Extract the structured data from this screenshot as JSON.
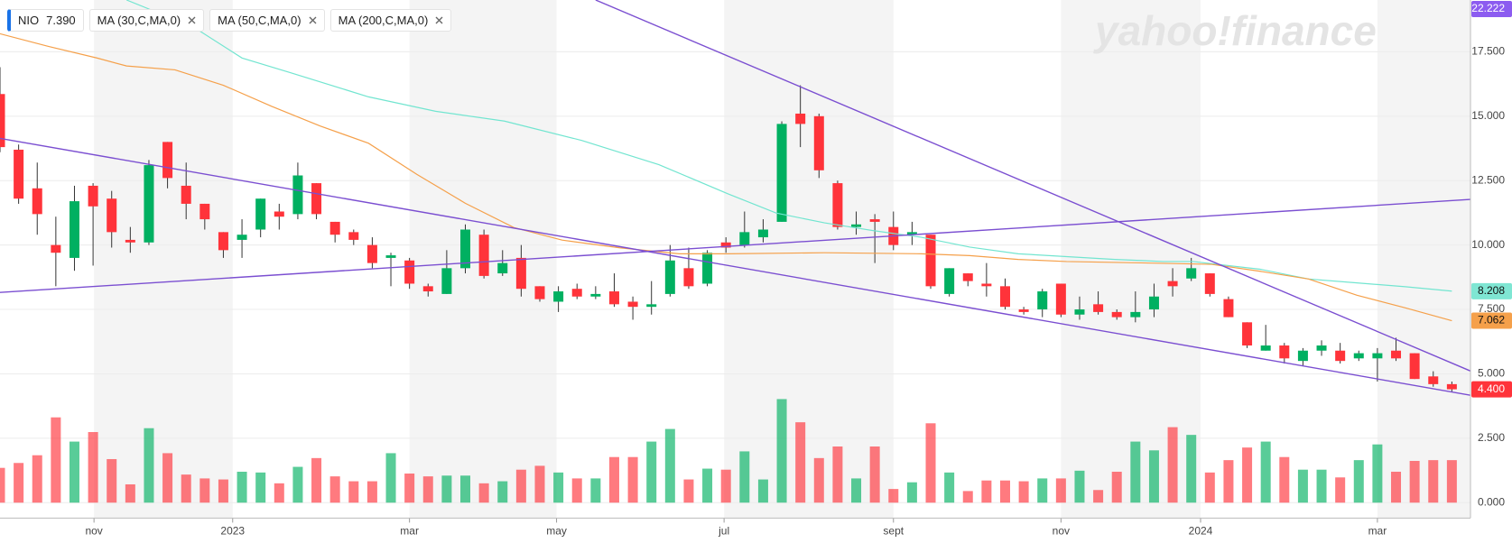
{
  "chart_data": {
    "type": "candlestick",
    "watermark": "yahoo!finance",
    "series": [
      {
        "name": "NIO",
        "legend_value": {
          "value": 7.39,
          "label": "7.390"
        },
        "up_color": "#00b061",
        "down_color": "#ff333a",
        "open": [
          15.86,
          13.7,
          12.2,
          10.0,
          9.5,
          12.3,
          11.8,
          10.2,
          10.1,
          14.0,
          12.3,
          11.6,
          10.5,
          10.2,
          10.6,
          11.3,
          11.2,
          12.4,
          10.9,
          10.5,
          10.0,
          9.5,
          9.4,
          8.4,
          8.1,
          9.1,
          10.4,
          8.9,
          9.5,
          8.4,
          7.8,
          8.3,
          8.0,
          8.2,
          7.8,
          7.6,
          8.1,
          9.1,
          8.5,
          10.1,
          10.0,
          10.3,
          10.9,
          15.1,
          15.0,
          12.4,
          10.7,
          11.0,
          10.7,
          10.4,
          10.4,
          8.1,
          8.9,
          8.5,
          8.4,
          7.5,
          7.5,
          8.5,
          7.3,
          7.7,
          7.4,
          7.2,
          7.5,
          8.6,
          8.7,
          8.9,
          7.9,
          7.0,
          5.9,
          6.1,
          5.5,
          5.9,
          5.9,
          5.6,
          5.6,
          5.9,
          5.8,
          4.9,
          4.6
        ],
        "high": [
          16.9,
          13.9,
          13.2,
          11.1,
          12.3,
          12.4,
          12.1,
          10.7,
          13.3,
          14.0,
          13.2,
          11.6,
          10.5,
          11.0,
          11.8,
          11.6,
          13.2,
          12.4,
          10.9,
          10.6,
          10.3,
          9.7,
          9.5,
          8.5,
          9.8,
          10.8,
          10.6,
          9.8,
          10.0,
          8.4,
          8.4,
          8.5,
          8.4,
          8.9,
          8.0,
          8.6,
          10.0,
          9.9,
          9.8,
          10.3,
          11.3,
          11.0,
          14.8,
          16.2,
          15.1,
          12.5,
          11.3,
          11.2,
          11.3,
          10.9,
          10.4,
          9.1,
          8.9,
          9.3,
          8.7,
          7.6,
          8.3,
          8.5,
          8.0,
          8.2,
          7.5,
          8.2,
          8.5,
          9.1,
          9.5,
          8.9,
          8.0,
          7.0,
          6.9,
          6.2,
          6.0,
          6.3,
          6.2,
          5.9,
          6.0,
          6.4,
          5.8,
          5.1,
          4.7
        ],
        "low": [
          13.6,
          11.6,
          10.4,
          8.4,
          9.0,
          9.2,
          9.9,
          9.7,
          10.0,
          12.2,
          11.0,
          10.6,
          9.5,
          9.5,
          10.3,
          10.6,
          11.0,
          11.0,
          10.1,
          10.0,
          9.1,
          8.4,
          8.3,
          8.0,
          8.1,
          8.9,
          8.7,
          8.8,
          8.0,
          7.8,
          7.4,
          7.9,
          7.9,
          7.6,
          7.1,
          7.3,
          8.0,
          8.3,
          8.4,
          9.7,
          9.9,
          10.1,
          10.9,
          13.8,
          12.6,
          10.6,
          10.4,
          9.3,
          9.8,
          10.0,
          8.3,
          8.0,
          8.4,
          8.0,
          7.5,
          7.3,
          7.2,
          7.2,
          7.1,
          7.3,
          7.1,
          7.0,
          7.2,
          8.0,
          8.6,
          8.0,
          7.2,
          6.0,
          5.9,
          5.4,
          5.3,
          5.7,
          5.4,
          5.5,
          4.7,
          5.5,
          4.8,
          4.5,
          4.3
        ],
        "close": [
          13.8,
          11.8,
          11.2,
          9.7,
          11.7,
          11.5,
          10.5,
          10.1,
          13.1,
          12.6,
          11.6,
          11.0,
          9.8,
          10.4,
          11.8,
          11.1,
          12.7,
          11.2,
          10.4,
          10.2,
          9.3,
          9.6,
          8.5,
          8.2,
          9.1,
          10.6,
          8.8,
          9.3,
          8.3,
          7.9,
          8.2,
          8.0,
          8.1,
          7.7,
          7.6,
          7.7,
          9.4,
          8.4,
          9.7,
          9.9,
          10.5,
          10.6,
          14.7,
          14.7,
          12.9,
          10.7,
          10.8,
          10.9,
          10.0,
          10.5,
          8.4,
          9.1,
          8.6,
          8.4,
          7.6,
          7.4,
          8.2,
          7.3,
          7.5,
          7.4,
          7.2,
          7.4,
          8.0,
          8.4,
          9.1,
          8.1,
          7.2,
          6.1,
          6.1,
          5.6,
          5.9,
          6.1,
          5.5,
          5.8,
          5.8,
          5.6,
          4.8,
          4.6,
          4.4
        ],
        "volume": [
          1.35,
          1.54,
          1.84,
          3.31,
          2.37,
          2.74,
          1.69,
          0.71,
          2.89,
          1.92,
          1.09,
          0.94,
          0.9,
          1.2,
          1.17,
          0.75,
          1.39,
          1.73,
          1.02,
          0.83,
          0.83,
          1.92,
          1.13,
          1.02,
          1.05,
          1.05,
          0.75,
          0.83,
          1.28,
          1.43,
          1.17,
          0.94,
          0.94,
          1.77,
          1.77,
          2.37,
          2.86,
          0.9,
          1.32,
          1.28,
          1.99,
          0.9,
          4.02,
          3.12,
          1.73,
          2.18,
          0.94,
          2.18,
          0.53,
          0.79,
          3.08,
          1.17,
          0.45,
          0.86,
          0.86,
          0.83,
          0.94,
          0.94,
          1.24,
          0.49,
          1.2,
          2.37,
          2.03,
          2.93,
          2.63,
          1.17,
          1.65,
          2.14,
          2.37,
          1.77,
          1.28,
          1.28,
          0.98,
          1.65,
          2.26,
          1.2,
          1.62,
          1.65,
          1.65
        ]
      }
    ],
    "ma_series": [
      {
        "name": "MA (30,C,MA,0)",
        "color": "#72e5d0",
        "x": [
          6.8,
          10.4,
          13.0,
          15.6,
          19.8,
          23.4,
          27.1,
          31.25,
          35.4,
          39.1,
          41.7,
          44.3,
          46.9,
          49.5,
          52.1,
          54.7,
          57.3,
          59.9,
          62.5,
          64.1,
          67.7,
          70.3,
          72.9,
          75.5,
          78
        ],
        "values": [
          19.51,
          18.46,
          17.26,
          16.69,
          15.75,
          15.19,
          14.81,
          14.06,
          13.12,
          11.99,
          11.24,
          10.86,
          10.56,
          10.3,
          9.92,
          9.66,
          9.55,
          9.44,
          9.36,
          9.36,
          9.06,
          8.68,
          8.53,
          8.38,
          8.21
        ]
      },
      {
        "name": "MA (50,C,MA,0)",
        "color": "#f5a04a",
        "x": [
          0,
          2.6,
          5.2,
          6.8,
          9.4,
          12.0,
          14.6,
          17.2,
          19.8,
          22.4,
          25.0,
          27.6,
          30.2,
          33.3,
          36.5,
          39.1,
          44.3,
          49.5,
          52.1,
          54.7,
          57.3,
          62.5,
          65.1,
          67.7,
          70.3,
          72.9,
          75.5,
          78
        ],
        "values": [
          18.2,
          17.71,
          17.26,
          16.95,
          16.8,
          16.2,
          15.38,
          14.62,
          13.95,
          12.74,
          11.62,
          10.68,
          10.19,
          9.89,
          9.66,
          9.66,
          9.7,
          9.66,
          9.59,
          9.44,
          9.36,
          9.29,
          9.25,
          8.98,
          8.68,
          8.05,
          7.56,
          7.06
        ]
      },
      {
        "name": "MA (200,C,MA,0)"
      }
    ],
    "trendline_color": "#7b4fd1",
    "trendlines": [
      {
        "x": [
          0,
          79
        ],
        "y": [
          14.14,
          4.17
        ]
      },
      {
        "x": [
          0,
          79
        ],
        "y": [
          8.16,
          11.77
        ]
      },
      {
        "x": [
          32,
          79
        ],
        "y": [
          19.51,
          5.11
        ]
      }
    ],
    "price_labels": [
      {
        "value": 22.222,
        "label": "22.222",
        "color": "#8c5cf0",
        "text_color": "#ffffff"
      },
      {
        "value": 8.208,
        "label": "8.208",
        "color": "#7fe6d3",
        "text_color": "#111111"
      },
      {
        "value": 7.062,
        "label": "7.062",
        "color": "#f5a04a",
        "text_color": "#111111"
      },
      {
        "value": 4.4,
        "label": "4.400",
        "color": "#ff333a",
        "text_color": "#ffffff"
      }
    ],
    "xlim": [
      0,
      79
    ],
    "xticks": [
      {
        "value": 5.05,
        "label": "nov"
      },
      {
        "value": 12.5,
        "label": "2023"
      },
      {
        "value": 22.0,
        "label": "mar"
      },
      {
        "value": 29.9,
        "label": "may"
      },
      {
        "value": 38.9,
        "label": "jul"
      },
      {
        "value": 48.0,
        "label": "sept"
      },
      {
        "value": 57.0,
        "label": "nov"
      },
      {
        "value": 64.5,
        "label": "2024"
      },
      {
        "value": 74.0,
        "label": "mar"
      }
    ],
    "ylim": [
      -0.6,
      19.51
    ],
    "yticks": [
      {
        "value": 0,
        "label": "0.000"
      },
      {
        "value": 2.5,
        "label": "2.500"
      },
      {
        "value": 5,
        "label": "5.000"
      },
      {
        "value": 7.5,
        "label": "7.500"
      },
      {
        "value": 10,
        "label": "10.000"
      },
      {
        "value": 12.5,
        "label": "12.500"
      },
      {
        "value": 15,
        "label": "15.000"
      },
      {
        "value": 17.5,
        "label": "17.500"
      }
    ],
    "grid": true
  }
}
